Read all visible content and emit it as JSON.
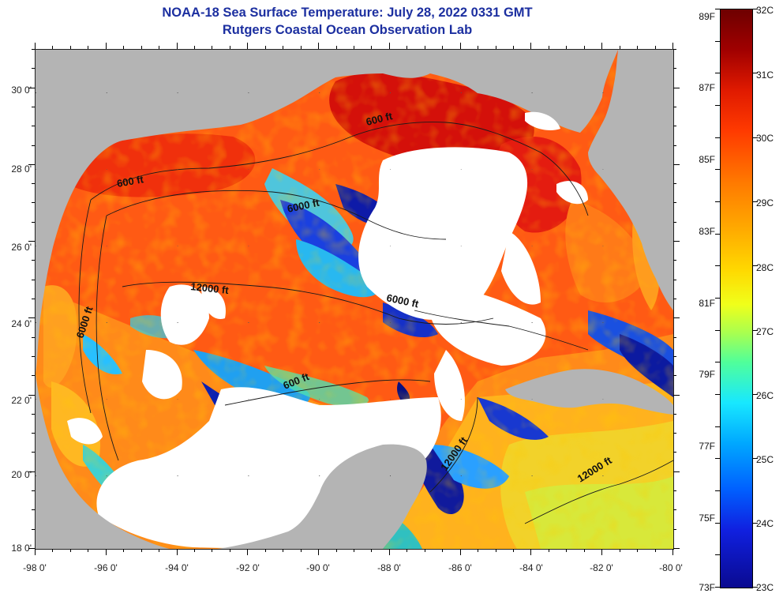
{
  "title": {
    "line1": "NOAA-18 Sea Surface Temperature:  July 28, 2022 0331 GMT",
    "line2": "Rutgers Coastal Ocean Observation Lab"
  },
  "map": {
    "lat_labels": [
      "30 0'",
      "28 0'",
      "26 0'",
      "24 0'",
      "22 0'",
      "20 0'",
      "18 0'"
    ],
    "lon_labels": [
      "-98 0'",
      "-96 0'",
      "-94 0'",
      "-92 0'",
      "-90 0'",
      "-88 0'",
      "-86 0'",
      "-84 0'",
      "-82 0'",
      "-80 0'"
    ],
    "contour_labels": [
      "600 ft",
      "600 ft",
      "6000 ft",
      "12000 ft",
      "6000 ft",
      "6000 ft",
      "600 ft",
      "12000 ft",
      "12000 ft"
    ]
  },
  "colorbar": {
    "fahrenheit": [
      "89F",
      "87F",
      "85F",
      "83F",
      "81F",
      "79F",
      "77F",
      "75F",
      "73F"
    ],
    "celsius": [
      "32C",
      "31C",
      "30C",
      "29C",
      "28C",
      "27C",
      "26C",
      "25C",
      "24C",
      "23C"
    ]
  },
  "colors": {
    "land": "#b4b4b4",
    "cloud": "#ffffff",
    "title": "#1c2fa0"
  }
}
